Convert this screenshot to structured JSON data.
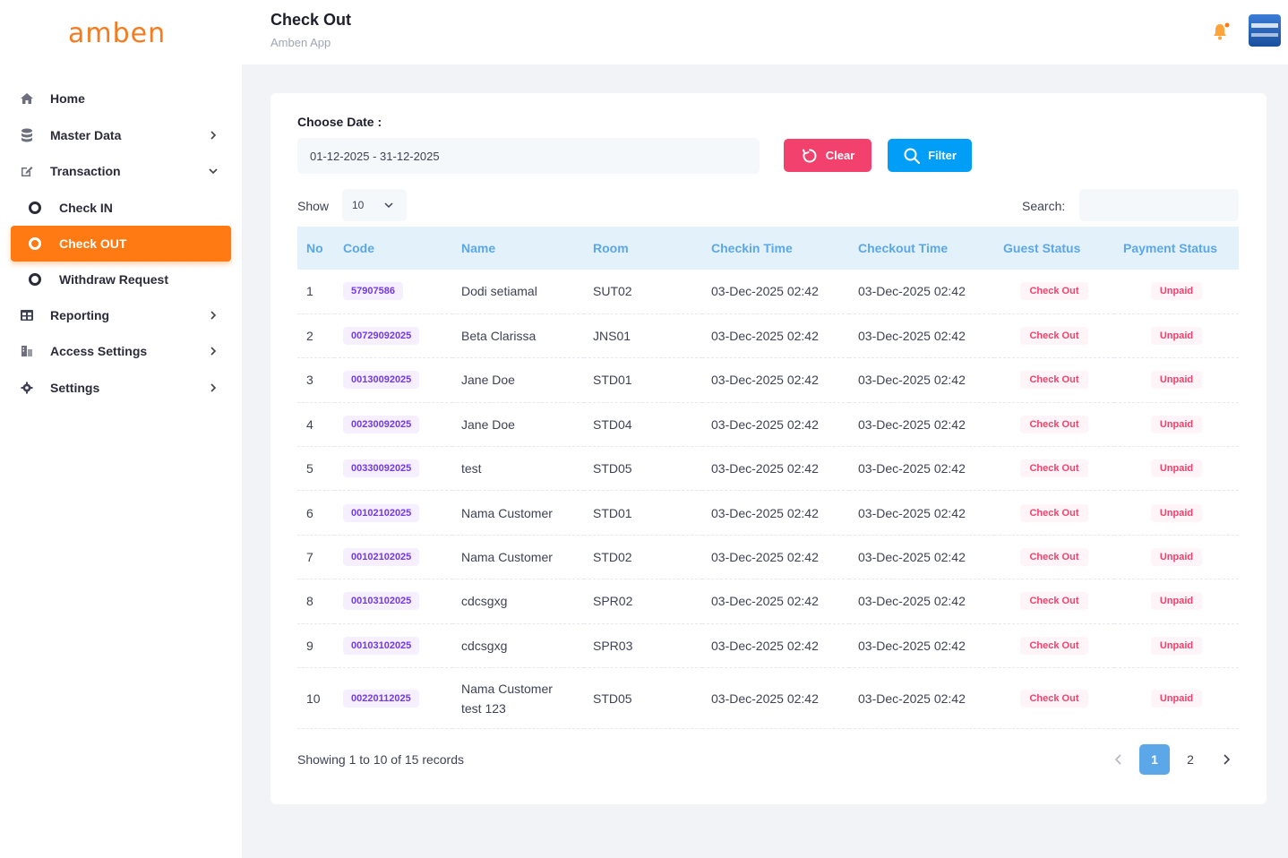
{
  "sidebar": {
    "logo": "amben",
    "items": [
      {
        "label": "Home",
        "icon": "home-icon",
        "chevron": false
      },
      {
        "label": "Master Data",
        "icon": "database-icon",
        "chevron": true
      },
      {
        "label": "Transaction",
        "icon": "edit-icon",
        "chevron": "down"
      }
    ],
    "sub_items": [
      {
        "label": "Check IN"
      },
      {
        "label": "Check OUT",
        "active": true
      },
      {
        "label": "Withdraw Request"
      }
    ],
    "items_after": [
      {
        "label": "Reporting",
        "icon": "grid-icon"
      },
      {
        "label": "Access Settings",
        "icon": "building-icon"
      },
      {
        "label": "Settings",
        "icon": "gear-icon"
      }
    ]
  },
  "header": {
    "title": "Check Out",
    "subtitle": "Amben App"
  },
  "filter": {
    "label": "Choose Date :",
    "date_range": "01-12-2025 - 31-12-2025",
    "clear_label": "Clear",
    "filter_label": "Filter"
  },
  "table_controls": {
    "show_label": "Show",
    "show_value": "10",
    "search_label": "Search:",
    "search_value": ""
  },
  "table": {
    "columns": [
      "No",
      "Code",
      "Name",
      "Room",
      "Checkin Time",
      "Checkout Time",
      "Guest Status",
      "Payment Status"
    ],
    "rows": [
      {
        "no": "1",
        "code": "57907586",
        "name": "Dodi setiamal",
        "room": "SUT02",
        "checkin": "03-Dec-2025 02:42",
        "checkout": "03-Dec-2025 02:42",
        "guest": "Check Out",
        "payment": "Unpaid"
      },
      {
        "no": "2",
        "code": "00729092025",
        "name": "Beta Clarissa",
        "room": "JNS01",
        "checkin": "03-Dec-2025 02:42",
        "checkout": "03-Dec-2025 02:42",
        "guest": "Check Out",
        "payment": "Unpaid"
      },
      {
        "no": "3",
        "code": "00130092025",
        "name": "Jane Doe",
        "room": "STD01",
        "checkin": "03-Dec-2025 02:42",
        "checkout": "03-Dec-2025 02:42",
        "guest": "Check Out",
        "payment": "Unpaid"
      },
      {
        "no": "4",
        "code": "00230092025",
        "name": "Jane Doe",
        "room": "STD04",
        "checkin": "03-Dec-2025 02:42",
        "checkout": "03-Dec-2025 02:42",
        "guest": "Check Out",
        "payment": "Unpaid"
      },
      {
        "no": "5",
        "code": "00330092025",
        "name": "test",
        "room": "STD05",
        "checkin": "03-Dec-2025 02:42",
        "checkout": "03-Dec-2025 02:42",
        "guest": "Check Out",
        "payment": "Unpaid"
      },
      {
        "no": "6",
        "code": "00102102025",
        "name": "Nama Customer",
        "room": "STD01",
        "checkin": "03-Dec-2025 02:42",
        "checkout": "03-Dec-2025 02:42",
        "guest": "Check Out",
        "payment": "Unpaid"
      },
      {
        "no": "7",
        "code": "00102102025",
        "name": "Nama Customer",
        "room": "STD02",
        "checkin": "03-Dec-2025 02:42",
        "checkout": "03-Dec-2025 02:42",
        "guest": "Check Out",
        "payment": "Unpaid"
      },
      {
        "no": "8",
        "code": "00103102025",
        "name": "cdcsgxg",
        "room": "SPR02",
        "checkin": "03-Dec-2025 02:42",
        "checkout": "03-Dec-2025 02:42",
        "guest": "Check Out",
        "payment": "Unpaid"
      },
      {
        "no": "9",
        "code": "00103102025",
        "name": "cdcsgxg",
        "room": "SPR03",
        "checkin": "03-Dec-2025 02:42",
        "checkout": "03-Dec-2025 02:42",
        "guest": "Check Out",
        "payment": "Unpaid"
      },
      {
        "no": "10",
        "code": "00220112025",
        "name": "Nama Customer test 123",
        "room": "STD05",
        "checkin": "03-Dec-2025 02:42",
        "checkout": "03-Dec-2025 02:42",
        "guest": "Check Out",
        "payment": "Unpaid"
      }
    ]
  },
  "footer": {
    "info": "Showing 1 to 10 of 15 records",
    "pages": [
      "1",
      "2"
    ],
    "current_page": "1"
  },
  "colors": {
    "accent_orange": "#ff7a12",
    "clear_red": "#f1416c",
    "filter_blue": "#009ef7",
    "header_blue": "#5ba7e8",
    "code_purple": "#7239ea"
  }
}
